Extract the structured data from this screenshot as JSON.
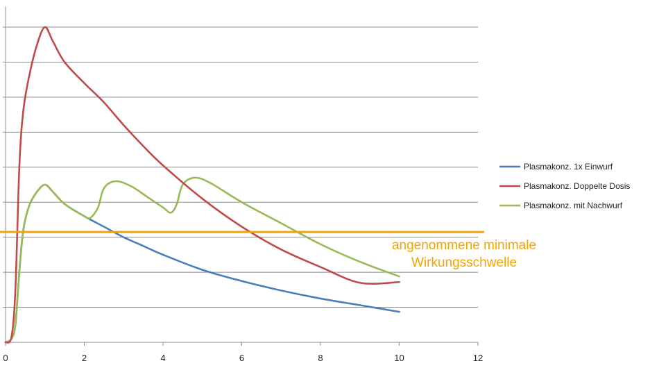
{
  "chart_data": {
    "type": "line",
    "title": "",
    "xlabel": "",
    "ylabel": "",
    "xlim": [
      0,
      12
    ],
    "ylim": [
      0,
      9
    ],
    "x_ticks": [
      "0",
      "2",
      "4",
      "6",
      "8",
      "10",
      "12"
    ],
    "y_tick_labels_visible": false,
    "grid": "horizontal",
    "legend_position": "right",
    "series": [
      {
        "name": "Plasmakonz. 1x Einwurf",
        "color": "#4a7ebb",
        "points": [
          [
            0,
            0
          ],
          [
            0.15,
            0.1
          ],
          [
            0.25,
            0.5
          ],
          [
            0.35,
            2.0
          ],
          [
            0.45,
            3.2
          ],
          [
            0.6,
            3.9
          ],
          [
            0.8,
            4.3
          ],
          [
            1.0,
            4.5
          ],
          [
            1.2,
            4.3
          ],
          [
            1.5,
            3.95
          ],
          [
            2.0,
            3.6
          ],
          [
            2.5,
            3.3
          ],
          [
            3.0,
            3.0
          ],
          [
            3.5,
            2.75
          ],
          [
            4.0,
            2.5
          ],
          [
            5.0,
            2.07
          ],
          [
            6.0,
            1.75
          ],
          [
            7.0,
            1.48
          ],
          [
            8.0,
            1.25
          ],
          [
            9.0,
            1.06
          ],
          [
            10.0,
            0.87
          ]
        ]
      },
      {
        "name": "Plasmakonz. Doppelte Dosis",
        "color": "#be4b48",
        "points": [
          [
            0,
            0
          ],
          [
            0.15,
            0.15
          ],
          [
            0.25,
            1.5
          ],
          [
            0.35,
            5.0
          ],
          [
            0.45,
            6.6
          ],
          [
            0.6,
            7.6
          ],
          [
            0.8,
            8.5
          ],
          [
            1.0,
            9.0
          ],
          [
            1.2,
            8.6
          ],
          [
            1.5,
            8.0
          ],
          [
            2.0,
            7.4
          ],
          [
            2.5,
            6.85
          ],
          [
            3.0,
            6.2
          ],
          [
            3.5,
            5.6
          ],
          [
            4.0,
            5.05
          ],
          [
            5.0,
            4.1
          ],
          [
            6.0,
            3.3
          ],
          [
            7.0,
            2.65
          ],
          [
            8.0,
            2.15
          ],
          [
            9.0,
            1.7
          ],
          [
            10.0,
            1.72
          ]
        ]
      },
      {
        "name": "Plasmakonz. mit Nachwurf",
        "color": "#98b954",
        "points": [
          [
            0,
            0
          ],
          [
            0.15,
            0.1
          ],
          [
            0.25,
            0.5
          ],
          [
            0.35,
            2.0
          ],
          [
            0.45,
            3.2
          ],
          [
            0.6,
            3.9
          ],
          [
            0.8,
            4.3
          ],
          [
            1.0,
            4.5
          ],
          [
            1.2,
            4.3
          ],
          [
            1.5,
            3.95
          ],
          [
            2.0,
            3.6
          ],
          [
            2.15,
            3.55
          ],
          [
            2.35,
            3.85
          ],
          [
            2.5,
            4.4
          ],
          [
            2.8,
            4.6
          ],
          [
            3.2,
            4.45
          ],
          [
            3.6,
            4.15
          ],
          [
            4.0,
            3.85
          ],
          [
            4.2,
            3.7
          ],
          [
            4.35,
            3.95
          ],
          [
            4.5,
            4.5
          ],
          [
            4.8,
            4.7
          ],
          [
            5.2,
            4.55
          ],
          [
            6.0,
            4.0
          ],
          [
            7.0,
            3.4
          ],
          [
            8.0,
            2.8
          ],
          [
            9.0,
            2.3
          ],
          [
            10.0,
            1.88
          ]
        ]
      }
    ],
    "threshold": {
      "label_line1": "angenommene minimale",
      "label_line2": "Wirkungsschwelle",
      "y": 3.15,
      "color": "#f5a300"
    }
  }
}
